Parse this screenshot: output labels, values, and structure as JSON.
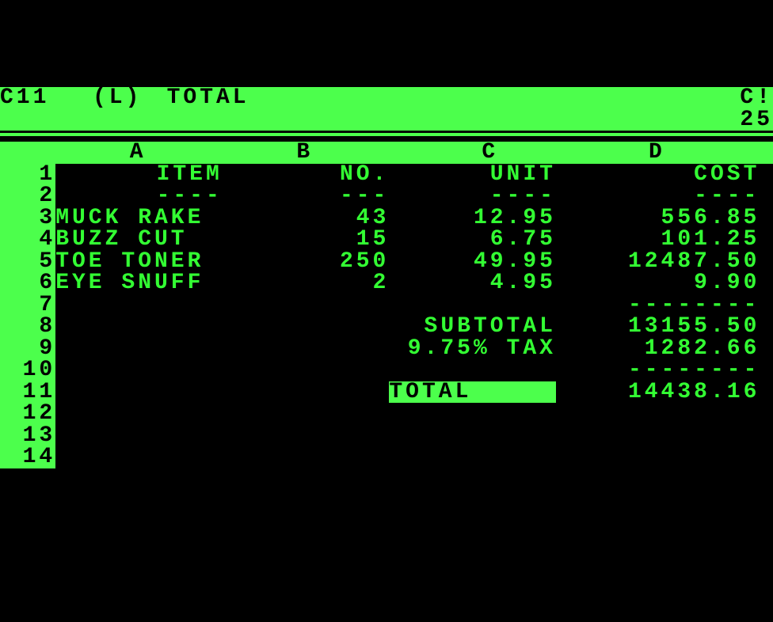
{
  "header": {
    "cell_ref": "C11",
    "cell_type": "(L)",
    "cell_content": "TOTAL",
    "right_status": "C!",
    "right_value": "25"
  },
  "columns": {
    "a": "A",
    "b": "B",
    "c": "C",
    "d": "D"
  },
  "col_headers": {
    "item": "ITEM",
    "no": "NO.",
    "unit": "UNIT",
    "cost": "COST",
    "item_ul": "----",
    "no_ul": "---",
    "unit_ul": "----",
    "cost_ul": "----"
  },
  "row_labels": [
    "1",
    "2",
    "3",
    "4",
    "5",
    "6",
    "7",
    "8",
    "9",
    "10",
    "11",
    "12",
    "13",
    "14"
  ],
  "items": [
    {
      "name": "MUCK RAKE",
      "no": "43",
      "unit": "12.95",
      "cost": "556.85"
    },
    {
      "name": "BUZZ CUT",
      "no": "15",
      "unit": "6.75",
      "cost": "101.25"
    },
    {
      "name": "TOE TONER",
      "no": "250",
      "unit": "49.95",
      "cost": "12487.50"
    },
    {
      "name": "EYE SNUFF",
      "no": "2",
      "unit": "4.95",
      "cost": "9.90"
    }
  ],
  "rules": {
    "subtotal_rule": "--------",
    "total_rule": "--------"
  },
  "summary": {
    "subtotal_label": "SUBTOTAL",
    "subtotal_value": "13155.50",
    "tax_label": "9.75% TAX",
    "tax_value": "1282.66",
    "total_label": "TOTAL   ",
    "total_value": "14438.16"
  },
  "colors": {
    "background": "#000000",
    "foreground": "#33ff33",
    "inverse_bg": "#4cff4c",
    "inverse_fg": "#000000"
  }
}
